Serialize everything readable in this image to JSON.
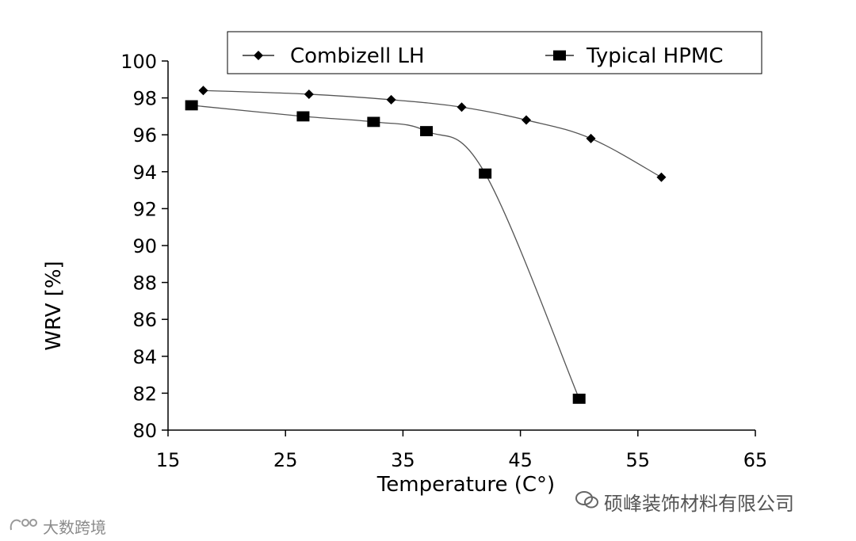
{
  "chart_data": {
    "type": "line",
    "title": "",
    "xlabel": "Temperature (C°)",
    "ylabel": "WRV [%]",
    "xlim": [
      15,
      65
    ],
    "ylim": [
      80,
      100
    ],
    "xticks": [
      "15",
      "25",
      "35",
      "45",
      "55",
      "65"
    ],
    "yticks": [
      "80",
      "82",
      "84",
      "86",
      "88",
      "90",
      "92",
      "94",
      "96",
      "98",
      "100"
    ],
    "grid": false,
    "legend_position": "top",
    "series": [
      {
        "name": "Combizell LH",
        "marker": "diamond",
        "color": "#000000",
        "x": [
          18,
          27,
          34,
          40,
          45.5,
          51,
          57
        ],
        "y": [
          98.4,
          98.2,
          97.9,
          97.5,
          96.8,
          95.8,
          93.7
        ]
      },
      {
        "name": "Typical HPMC",
        "marker": "square",
        "color": "#000000",
        "x": [
          17,
          26.5,
          32.5,
          37,
          42,
          50
        ],
        "y": [
          97.6,
          97.0,
          96.7,
          96.2,
          93.9,
          81.7
        ]
      }
    ]
  },
  "watermarks": {
    "right": "硕峰装饰材料有限公司",
    "left": "大数跨境"
  }
}
